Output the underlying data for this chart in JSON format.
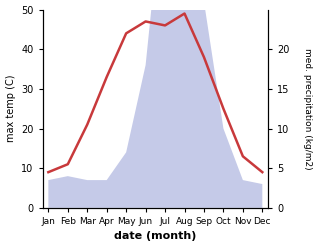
{
  "months": [
    "Jan",
    "Feb",
    "Mar",
    "Apr",
    "May",
    "Jun",
    "Jul",
    "Aug",
    "Sep",
    "Oct",
    "Nov",
    "Dec"
  ],
  "temperature": [
    9,
    11,
    21,
    33,
    44,
    47,
    46,
    49,
    38,
    25,
    13,
    9
  ],
  "precipitation": [
    3.5,
    4.0,
    3.5,
    3.5,
    7.0,
    18.0,
    42.0,
    48.0,
    26.0,
    10.0,
    3.5,
    3.0
  ],
  "temp_color": "#c8393b",
  "precip_fill_color": "#c5cae8",
  "temp_ylim": [
    0,
    50
  ],
  "precip_ylim": [
    0,
    25
  ],
  "precip_scale": 2.0,
  "temp_yticks": [
    0,
    10,
    20,
    30,
    40,
    50
  ],
  "precip_yticks": [
    0,
    5,
    10,
    15,
    20
  ],
  "xlabel": "date (month)",
  "ylabel_left": "max temp (C)",
  "ylabel_right": "med. precipitation (kg/m2)",
  "bg_color": "#ffffff"
}
